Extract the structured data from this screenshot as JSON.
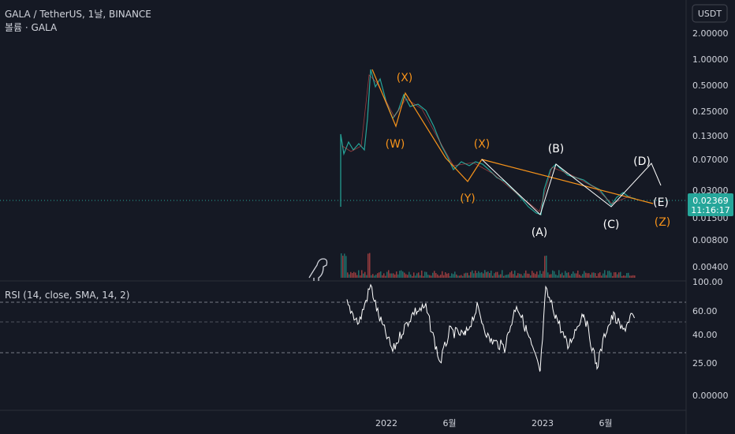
{
  "header": {
    "symbol": "GALA / TetherUS, 1날, BINANCE",
    "volume": "볼륨 · GALA"
  },
  "currency": "USDT",
  "price_axis": [
    "2.00000",
    "1.00000",
    "0.50000",
    "0.25000",
    "0.13000",
    "0.07000",
    "0.03000",
    "0.01500",
    "0.00800",
    "0.00400"
  ],
  "last_price": {
    "price": "0.02369",
    "countdown": "11:16:17"
  },
  "wave_labels": [
    {
      "text": "(X)",
      "color": "#f7931a"
    },
    {
      "text": "(W)",
      "color": "#f7931a"
    },
    {
      "text": "(X)",
      "color": "#f7931a"
    },
    {
      "text": "(Y)",
      "color": "#f7931a"
    },
    {
      "text": "(B)",
      "color": "#ffffff"
    },
    {
      "text": "(A)",
      "color": "#ffffff"
    },
    {
      "text": "(C)",
      "color": "#ffffff"
    },
    {
      "text": "(D)",
      "color": "#ffffff"
    },
    {
      "text": "(E)",
      "color": "#ffffff"
    },
    {
      "text": "(Z)",
      "color": "#f7931a"
    }
  ],
  "indicator": {
    "name": "RSI (14, close, SMA, 14, 2)",
    "axis": [
      "100.00",
      "60.00",
      "40.00",
      "25.00",
      "0.00000"
    ]
  },
  "time_axis": [
    "2022",
    "6월",
    "2023",
    "6월"
  ]
}
